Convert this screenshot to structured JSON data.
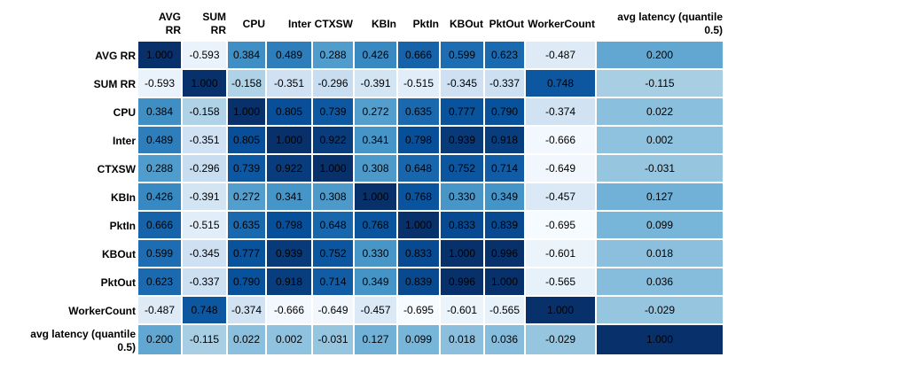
{
  "chart_data": {
    "type": "heatmap",
    "colormap": "Blues",
    "value_range": [
      -0.7,
      1.0
    ],
    "labels": [
      "AVG RR",
      "SUM RR",
      "CPU",
      "Inter",
      "CTXSW",
      "KBIn",
      "PktIn",
      "KBOut",
      "PktOut",
      "WorkerCount",
      "avg latency (quantile 0.5)"
    ],
    "column_headers": [
      "AVG\nRR",
      "SUM\nRR",
      "CPU",
      "Inter",
      "CTXSW",
      "KBIn",
      "PktIn",
      "KBOut",
      "PktOut",
      "WorkerCount",
      "avg latency (quantile\n0.5)"
    ],
    "row_headers": [
      "AVG RR",
      "SUM RR",
      "CPU",
      "Inter",
      "CTXSW",
      "KBIn",
      "PktIn",
      "KBOut",
      "PktOut",
      "WorkerCount",
      "avg latency (quantile\n0.5)"
    ],
    "values": [
      [
        "1.000",
        "-0.593",
        "0.384",
        "0.489",
        "0.288",
        "0.426",
        "0.666",
        "0.599",
        "0.623",
        "-0.487",
        "0.200"
      ],
      [
        "-0.593",
        "1.000",
        "-0.158",
        "-0.351",
        "-0.296",
        "-0.391",
        "-0.515",
        "-0.345",
        "-0.337",
        "0.748",
        "-0.115"
      ],
      [
        "0.384",
        "-0.158",
        "1.000",
        "0.805",
        "0.739",
        "0.272",
        "0.635",
        "0.777",
        "0.790",
        "-0.374",
        "0.022"
      ],
      [
        "0.489",
        "-0.351",
        "0.805",
        "1.000",
        "0.922",
        "0.341",
        "0.798",
        "0.939",
        "0.918",
        "-0.666",
        "0.002"
      ],
      [
        "0.288",
        "-0.296",
        "0.739",
        "0.922",
        "1.000",
        "0.308",
        "0.648",
        "0.752",
        "0.714",
        "-0.649",
        "-0.031"
      ],
      [
        "0.426",
        "-0.391",
        "0.272",
        "0.341",
        "0.308",
        "1.000",
        "0.768",
        "0.330",
        "0.349",
        "-0.457",
        "0.127"
      ],
      [
        "0.666",
        "-0.515",
        "0.635",
        "0.798",
        "0.648",
        "0.768",
        "1.000",
        "0.833",
        "0.839",
        "-0.695",
        "0.099"
      ],
      [
        "0.599",
        "-0.345",
        "0.777",
        "0.939",
        "0.752",
        "0.330",
        "0.833",
        "1.000",
        "0.996",
        "-0.601",
        "0.018"
      ],
      [
        "0.623",
        "-0.337",
        "0.790",
        "0.918",
        "0.714",
        "0.349",
        "0.839",
        "0.996",
        "1.000",
        "-0.565",
        "0.036"
      ],
      [
        "-0.487",
        "0.748",
        "-0.374",
        "-0.666",
        "-0.649",
        "-0.457",
        "-0.695",
        "-0.601",
        "-0.565",
        "1.000",
        "-0.029"
      ],
      [
        "0.200",
        "-0.115",
        "0.022",
        "0.002",
        "-0.031",
        "0.127",
        "0.099",
        "0.018",
        "0.036",
        "-0.029",
        "1.000"
      ]
    ],
    "grid": true,
    "legend": "none"
  }
}
